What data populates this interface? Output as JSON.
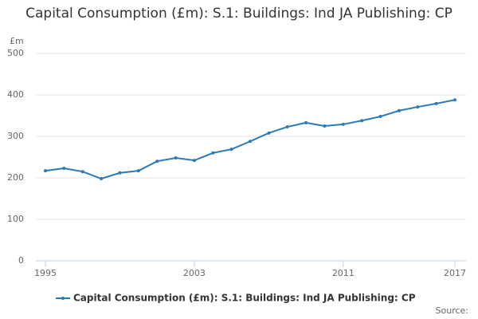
{
  "chart_data": {
    "type": "line",
    "title": "Capital Consumption (£m): S.1: Buildings: Ind JA Publishing: CP",
    "y_label": "£m",
    "source": "Source:",
    "x": [
      1995,
      1996,
      1997,
      1998,
      1999,
      2000,
      2001,
      2002,
      2003,
      2004,
      2005,
      2006,
      2007,
      2008,
      2009,
      2010,
      2011,
      2012,
      2013,
      2014,
      2015,
      2016,
      2017
    ],
    "series": [
      {
        "name": "Capital Consumption (£m): S.1: Buildings: Ind JA Publishing: CP",
        "color": "#2a7ab8",
        "values": [
          217,
          223,
          215,
          198,
          212,
          217,
          240,
          248,
          242,
          260,
          269,
          288,
          308,
          323,
          333,
          325,
          329,
          338,
          348,
          362,
          371,
          379,
          388
        ]
      }
    ],
    "xlim": [
      1995,
      2017
    ],
    "xticks": [
      1995,
      2003,
      2011,
      2017
    ],
    "ylim": [
      0,
      500
    ],
    "yticks": [
      0,
      100,
      200,
      300,
      400,
      500
    ],
    "grid": true,
    "legend": "bottom"
  }
}
